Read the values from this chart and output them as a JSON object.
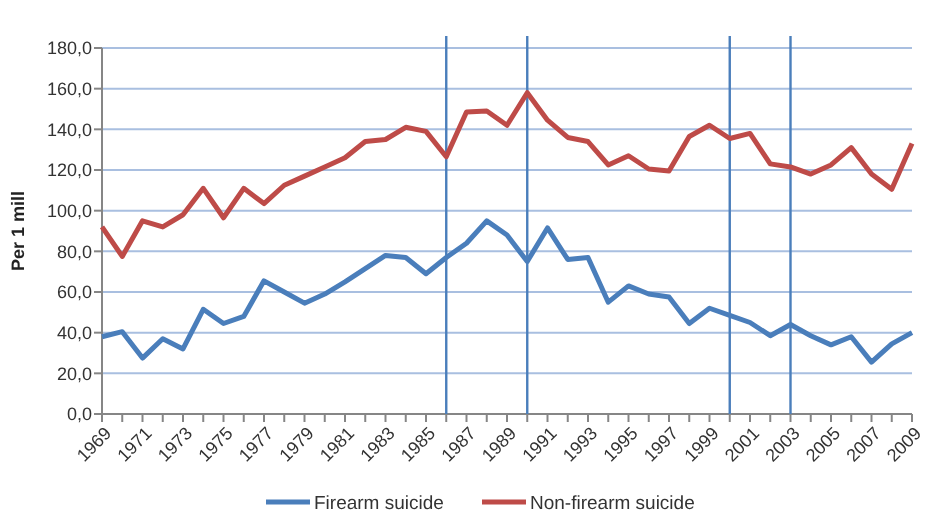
{
  "chart_data": {
    "type": "line",
    "ylabel": "Per 1 mill",
    "x": [
      1969,
      1970,
      1971,
      1972,
      1973,
      1974,
      1975,
      1976,
      1977,
      1978,
      1979,
      1980,
      1981,
      1982,
      1983,
      1984,
      1985,
      1986,
      1987,
      1988,
      1989,
      1990,
      1991,
      1992,
      1993,
      1994,
      1995,
      1996,
      1997,
      1998,
      1999,
      2000,
      2001,
      2002,
      2003,
      2004,
      2005,
      2006,
      2007,
      2008,
      2009
    ],
    "xlim": [
      1969,
      2009
    ],
    "xticks": [
      1969,
      {
        "value": 1970,
        "label": null
      },
      1971,
      {
        "value": 1972,
        "label": null
      },
      1973,
      {
        "value": 1974,
        "label": null
      },
      1975,
      {
        "value": 1976,
        "label": null
      },
      1977,
      {
        "value": 1978,
        "label": null
      },
      1979,
      {
        "value": 1980,
        "label": null
      },
      1981,
      {
        "value": 1982,
        "label": null
      },
      1983,
      {
        "value": 1984,
        "label": null
      },
      1985,
      {
        "value": 1986,
        "label": null
      },
      1987,
      {
        "value": 1988,
        "label": null
      },
      1989,
      {
        "value": 1990,
        "label": null
      },
      1991,
      {
        "value": 1992,
        "label": null
      },
      1993,
      {
        "value": 1994,
        "label": null
      },
      1995,
      {
        "value": 1996,
        "label": null
      },
      1997,
      {
        "value": 1998,
        "label": null
      },
      1999,
      {
        "value": 2000,
        "label": null
      },
      2001,
      {
        "value": 2002,
        "label": null
      },
      2003,
      {
        "value": 2004,
        "label": null
      },
      2005,
      {
        "value": 2006,
        "label": null
      },
      2007,
      {
        "value": 2008,
        "label": null
      },
      2009
    ],
    "ylim": [
      0,
      180
    ],
    "yticks": [
      {
        "value": 0,
        "label": "0,0"
      },
      {
        "value": 20,
        "label": "20,0"
      },
      {
        "value": 40,
        "label": "40,0"
      },
      {
        "value": 60,
        "label": "60,0"
      },
      {
        "value": 80,
        "label": "80,0"
      },
      {
        "value": 100,
        "label": "100,0"
      },
      {
        "value": 120,
        "label": "120,0"
      },
      {
        "value": 140,
        "label": "140,0"
      },
      {
        "value": 160,
        "label": "160,0"
      },
      {
        "value": 180,
        "label": "180,0"
      }
    ],
    "series": [
      {
        "name": "Firearm suicide",
        "color": "#4a7ebb",
        "values": [
          38,
          40.5,
          27.5,
          37,
          32,
          51.5,
          44.5,
          48,
          65.5,
          60,
          54.5,
          59,
          65,
          71.5,
          78,
          77,
          69,
          77,
          84,
          95,
          88,
          75,
          91.5,
          76,
          77,
          55,
          63,
          59,
          57.5,
          44.5,
          52,
          48.5,
          45,
          38.5,
          44,
          38.5,
          34,
          38,
          25.5,
          34.5,
          40
        ]
      },
      {
        "name": "Non-firearm suicide",
        "color": "#be4b48",
        "values": [
          92,
          77.5,
          95,
          92,
          98,
          111,
          96.5,
          111,
          103.5,
          112.5,
          117,
          121.5,
          126,
          134,
          135,
          141,
          139,
          126.5,
          148.5,
          149,
          142,
          158,
          144.5,
          136,
          134,
          122.5,
          127,
          120.5,
          119.5,
          136.5,
          142,
          135.5,
          138,
          123,
          121.5,
          118,
          122.5,
          131,
          118,
          110.5,
          133
        ]
      }
    ],
    "ref_lines": [
      {
        "axis": "x",
        "value": 1986,
        "color": "#4a7ebb"
      },
      {
        "axis": "x",
        "value": 1990,
        "color": "#4a7ebb"
      },
      {
        "axis": "x",
        "value": 2000,
        "color": "#4a7ebb"
      },
      {
        "axis": "x",
        "value": 2003,
        "color": "#4a7ebb"
      }
    ],
    "grid": "y",
    "legend": "bottom",
    "marker": "none",
    "line_style": "solid"
  }
}
